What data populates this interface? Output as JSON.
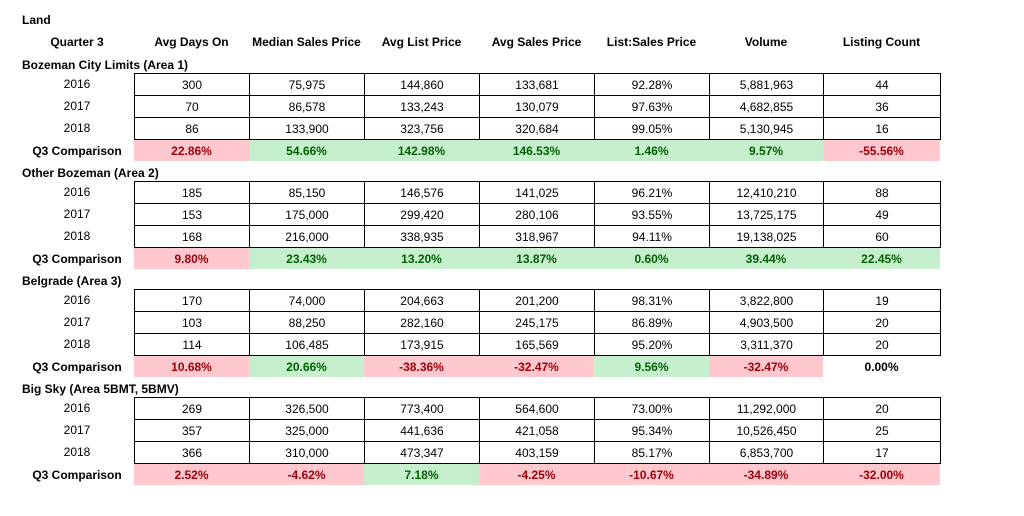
{
  "title": "Land",
  "headers": [
    "Quarter 3",
    "Avg Days On",
    "Median Sales Price",
    "Avg List Price",
    "Avg Sales Price",
    "List:Sales Price",
    "Volume",
    "Listing Count"
  ],
  "sections": [
    {
      "name": "Bozeman City Limits (Area 1)",
      "rows": [
        {
          "year": "2016",
          "cells": [
            "300",
            "75,975",
            "144,860",
            "133,681",
            "92.28%",
            "5,881,963",
            "44"
          ]
        },
        {
          "year": "2017",
          "cells": [
            "70",
            "86,578",
            "133,243",
            "130,079",
            "97.63%",
            "4,682,855",
            "36"
          ]
        },
        {
          "year": "2018",
          "cells": [
            "86",
            "133,900",
            "323,756",
            "320,684",
            "99.05%",
            "5,130,945",
            "16"
          ]
        }
      ],
      "comparison": {
        "label": "Q3 Comparison",
        "values": [
          "22.86%",
          "54.66%",
          "142.98%",
          "146.53%",
          "1.46%",
          "9.57%",
          "-55.56%"
        ],
        "status": [
          "neg",
          "pos",
          "pos",
          "pos",
          "pos",
          "pos",
          "neg"
        ]
      }
    },
    {
      "name": "Other Bozeman (Area 2)",
      "rows": [
        {
          "year": "2016",
          "cells": [
            "185",
            "85,150",
            "146,576",
            "141,025",
            "96.21%",
            "12,410,210",
            "88"
          ]
        },
        {
          "year": "2017",
          "cells": [
            "153",
            "175,000",
            "299,420",
            "280,106",
            "93.55%",
            "13,725,175",
            "49"
          ]
        },
        {
          "year": "2018",
          "cells": [
            "168",
            "216,000",
            "338,935",
            "318,967",
            "94.11%",
            "19,138,025",
            "60"
          ]
        }
      ],
      "comparison": {
        "label": "Q3 Comparison",
        "values": [
          "9.80%",
          "23.43%",
          "13.20%",
          "13.87%",
          "0.60%",
          "39.44%",
          "22.45%"
        ],
        "status": [
          "neg",
          "pos",
          "pos",
          "pos",
          "pos",
          "pos",
          "pos"
        ]
      }
    },
    {
      "name": "Belgrade (Area 3)",
      "rows": [
        {
          "year": "2016",
          "cells": [
            "170",
            "74,000",
            "204,663",
            "201,200",
            "98.31%",
            "3,822,800",
            "19"
          ]
        },
        {
          "year": "2017",
          "cells": [
            "103",
            "88,250",
            "282,160",
            "245,175",
            "86.89%",
            "4,903,500",
            "20"
          ]
        },
        {
          "year": "2018",
          "cells": [
            "114",
            "106,485",
            "173,915",
            "165,569",
            "95.20%",
            "3,311,370",
            "20"
          ]
        }
      ],
      "comparison": {
        "label": "Q3 Comparison",
        "values": [
          "10.68%",
          "20.66%",
          "-38.36%",
          "-32.47%",
          "9.56%",
          "-32.47%",
          "0.00%"
        ],
        "status": [
          "neg",
          "pos",
          "neg",
          "neg",
          "pos",
          "neg",
          "neu"
        ]
      }
    },
    {
      "name": "Big Sky (Area 5BMT, 5BMV)",
      "rows": [
        {
          "year": "2016",
          "cells": [
            "269",
            "326,500",
            "773,400",
            "564,600",
            "73.00%",
            "11,292,000",
            "20"
          ]
        },
        {
          "year": "2017",
          "cells": [
            "357",
            "325,000",
            "441,636",
            "421,058",
            "95.34%",
            "10,526,450",
            "25"
          ]
        },
        {
          "year": "2018",
          "cells": [
            "366",
            "310,000",
            "473,347",
            "403,159",
            "85.17%",
            "6,853,700",
            "17"
          ]
        }
      ],
      "comparison": {
        "label": "Q3 Comparison",
        "values": [
          "2.52%",
          "-4.62%",
          "7.18%",
          "-4.25%",
          "-10.67%",
          "-34.89%",
          "-32.00%"
        ],
        "status": [
          "neg",
          "neg",
          "pos",
          "neg",
          "neg",
          "neg",
          "neg"
        ]
      }
    }
  ]
}
